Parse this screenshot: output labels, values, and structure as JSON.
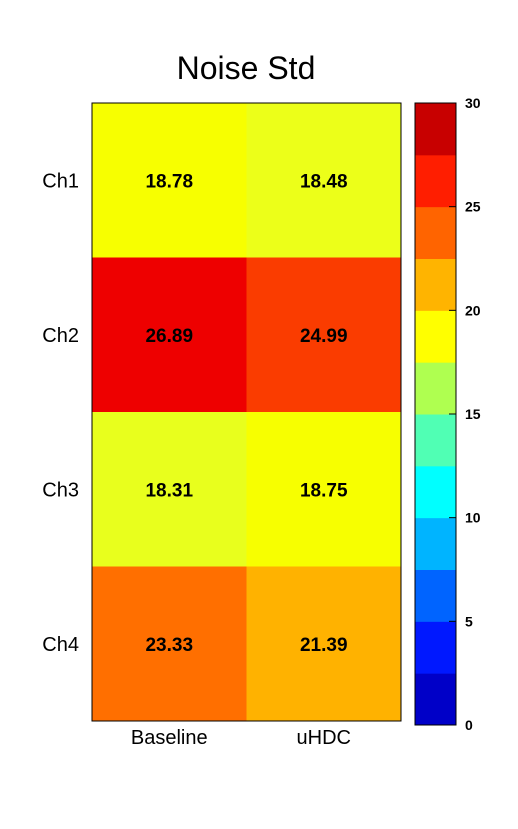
{
  "chart_data": {
    "type": "heatmap",
    "title": "Noise Std",
    "rows": [
      "Ch1",
      "Ch2",
      "Ch3",
      "Ch4"
    ],
    "columns": [
      "Baseline",
      "uHDC"
    ],
    "values": [
      [
        18.78,
        18.48
      ],
      [
        26.89,
        24.99
      ],
      [
        18.31,
        18.75
      ],
      [
        23.33,
        21.39
      ]
    ],
    "value_labels": [
      [
        "18.78",
        "18.48"
      ],
      [
        "26.89",
        "24.99"
      ],
      [
        "18.31",
        "18.75"
      ],
      [
        "23.33",
        "21.39"
      ]
    ],
    "colorbar": {
      "min": 0,
      "max": 30,
      "ticks": [
        0,
        5,
        10,
        15,
        20,
        25,
        30
      ],
      "tick_labels": [
        "0",
        "5",
        "10",
        "15",
        "20",
        "25",
        "30"
      ],
      "placement": "right",
      "colors": [
        "#0000c8",
        "#0018ff",
        "#0064ff",
        "#00b4ff",
        "#00ffff",
        "#50ffb4",
        "#afff50",
        "#ffff00",
        "#ffb400",
        "#ff6400",
        "#ff1e00",
        "#c80000"
      ]
    },
    "cell_colors": [
      [
        "#f7ff00",
        "#ecff19"
      ],
      [
        "#ee0000",
        "#fa3c00"
      ],
      [
        "#e8ff1d",
        "#f7ff00"
      ],
      [
        "#ff6f00",
        "#ffb200"
      ]
    ]
  }
}
